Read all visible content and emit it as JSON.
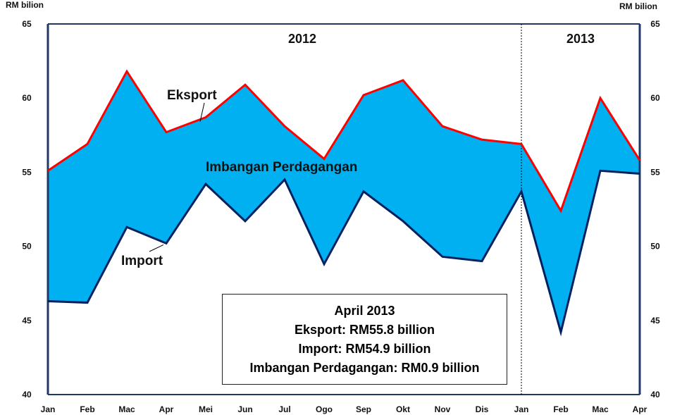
{
  "chart_data": {
    "type": "area",
    "categories": [
      "Jan",
      "Feb",
      "Mac",
      "Apr",
      "Mei",
      "Jun",
      "Jul",
      "Ogo",
      "Sep",
      "Okt",
      "Nov",
      "Dis",
      "Jan",
      "Feb",
      "Mac",
      "Apr"
    ],
    "series": [
      {
        "name": "Eksport",
        "color": "#ff0000",
        "values": [
          55.1,
          56.9,
          61.8,
          57.7,
          58.7,
          60.9,
          58.1,
          55.9,
          60.2,
          61.2,
          58.1,
          57.2,
          56.9,
          52.4,
          60.0,
          55.8
        ]
      },
      {
        "name": "Import",
        "color": "#002060",
        "values": [
          46.3,
          46.2,
          51.3,
          50.2,
          54.2,
          51.7,
          54.5,
          48.8,
          53.7,
          51.7,
          49.3,
          49.0,
          53.7,
          44.2,
          55.1,
          54.9
        ]
      }
    ],
    "fill_color": "#00b0f0",
    "fill_label": "Imbangan Perdagangan",
    "year_labels": [
      "2012",
      "2013"
    ],
    "ylim": [
      40,
      65
    ],
    "yticks": [
      40,
      45,
      50,
      55,
      60,
      65
    ],
    "ylabel_left": "RM bilion",
    "ylabel_right": "RM bilion",
    "grid": false,
    "legend": "none"
  },
  "infobox": {
    "line1": "April 2013",
    "line2": "Eksport: RM55.8 billion",
    "line3": "Import: RM54.9 billion",
    "line4": "Imbangan Perdagangan:  RM0.9 billion"
  }
}
